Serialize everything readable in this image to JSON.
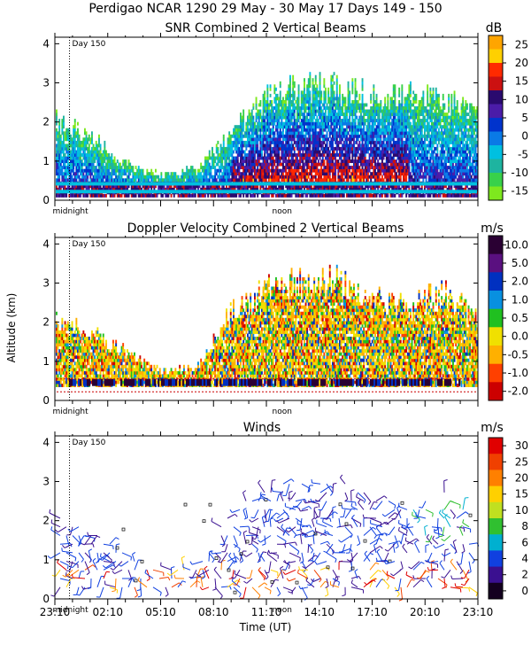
{
  "figure": {
    "title_line1": "Perdigao NCAR 1290  29 May - 30 May 17 Days 149 - 150",
    "ylabel": "Altitude (km)",
    "xlabel": "Time (UT)",
    "midnight_label": "midnight",
    "noon_label": "noon",
    "day_marker": "Day 150"
  },
  "chart_data": [
    {
      "type": "heatmap",
      "title": "SNR Combined 2 Vertical Beams",
      "units": "dB",
      "ylim": [
        0,
        4
      ],
      "yticks": [
        0,
        1,
        2,
        3,
        4
      ],
      "colorbar_labels": [
        "25",
        "20",
        "15",
        "10",
        "5",
        "0",
        "-5",
        "-10",
        "-15"
      ],
      "colorbar_colors": [
        "#ffa500",
        "#ffd000",
        "#ff2a00",
        "#cc1111",
        "#2a0a6e",
        "#4b1ca8",
        "#0033cc",
        "#0a7ae6",
        "#00c0e0",
        "#1eb4a0",
        "#38d14a",
        "#7ee81e"
      ],
      "profile": [
        {
          "hour": 0,
          "top_km": 2.0
        },
        {
          "hour": 2,
          "top_km": 1.6
        },
        {
          "hour": 4,
          "top_km": 0.9
        },
        {
          "hour": 6,
          "top_km": 0.6
        },
        {
          "hour": 8,
          "top_km": 0.8
        },
        {
          "hour": 10,
          "top_km": 1.7
        },
        {
          "hour": 12,
          "top_km": 2.6
        },
        {
          "hour": 14,
          "top_km": 2.9
        },
        {
          "hour": 16,
          "top_km": 2.8
        },
        {
          "hour": 18,
          "top_km": 2.6
        },
        {
          "hour": 20,
          "top_km": 2.7
        },
        {
          "hour": 22,
          "top_km": 2.5
        },
        {
          "hour": 24,
          "top_km": 2.4
        }
      ]
    },
    {
      "type": "heatmap",
      "title": "Doppler Velocity Combined 2 Vertical Beams",
      "units": "m/s",
      "ylim": [
        0,
        4
      ],
      "yticks": [
        0,
        1,
        2,
        3,
        4
      ],
      "colorbar_labels": [
        "10.0",
        "5.0",
        "2.0",
        "1.0",
        "0.5",
        "0.0",
        "-0.5",
        "-1.0",
        "-2.0"
      ],
      "colorbar_colors": [
        "#2a0033",
        "#5a1080",
        "#0030c0",
        "#0890e0",
        "#20c020",
        "#f0e000",
        "#ffb000",
        "#ff4000",
        "#cc0000"
      ],
      "profile": [
        {
          "hour": 0,
          "top_km": 2.1
        },
        {
          "hour": 2,
          "top_km": 1.7
        },
        {
          "hour": 4,
          "top_km": 1.2
        },
        {
          "hour": 6,
          "top_km": 0.7
        },
        {
          "hour": 8,
          "top_km": 0.8
        },
        {
          "hour": 10,
          "top_km": 2.2
        },
        {
          "hour": 12,
          "top_km": 2.8
        },
        {
          "hour": 14,
          "top_km": 3.0
        },
        {
          "hour": 16,
          "top_km": 3.0
        },
        {
          "hour": 18,
          "top_km": 2.6
        },
        {
          "hour": 20,
          "top_km": 2.3
        },
        {
          "hour": 22,
          "top_km": 2.7
        },
        {
          "hour": 24,
          "top_km": 2.0
        }
      ]
    },
    {
      "type": "scatter",
      "title": "Winds",
      "units": "m/s",
      "ylim": [
        0,
        4
      ],
      "yticks": [
        0,
        1,
        2,
        3,
        4
      ],
      "x_tick_labels": [
        "23:10",
        "02:10",
        "05:10",
        "08:10",
        "11:10",
        "14:10",
        "17:10",
        "20:10",
        "23:10"
      ],
      "colorbar_labels": [
        "30",
        "25",
        "20",
        "15",
        "10",
        "8",
        "6",
        "4",
        "2",
        "0"
      ],
      "colorbar_colors": [
        "#e00000",
        "#f04000",
        "#ff8000",
        "#ffd000",
        "#c0e020",
        "#30c030",
        "#00b0d0",
        "#1040e0",
        "#3a1090",
        "#140020"
      ]
    }
  ]
}
